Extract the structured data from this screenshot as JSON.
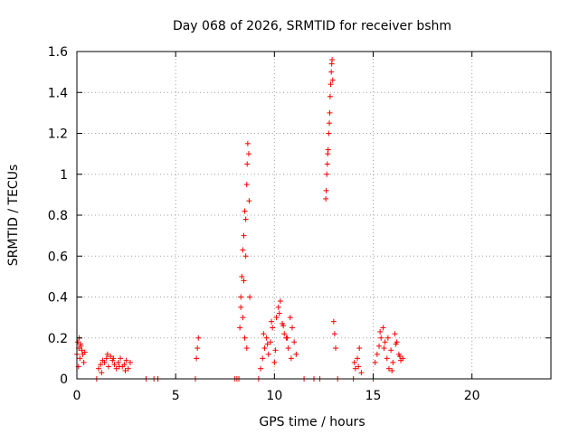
{
  "chart_data": {
    "type": "scatter",
    "title": "Day 068 of 2026, SRMTID for receiver bshm",
    "xlabel": "GPS time / hours",
    "ylabel": "SRMTID / TECUs",
    "xlim": [
      0,
      24
    ],
    "ylim": [
      0,
      1.6
    ],
    "xticks": [
      "0",
      "5",
      "10",
      "15",
      "20"
    ],
    "yticks": [
      "0",
      "0.2",
      "0.4",
      "0.6",
      "0.8",
      "1",
      "1.2",
      "1.4",
      "1.6"
    ],
    "grid": true,
    "marker": "plus",
    "color": "#ff0000",
    "x": [
      0.0,
      0.05,
      0.1,
      0.15,
      0.2,
      0.25,
      0.3,
      0.35,
      0.4,
      0.08,
      0.12,
      0.18,
      1.0,
      1.1,
      1.2,
      1.3,
      1.4,
      1.5,
      1.6,
      1.7,
      1.8,
      1.9,
      2.0,
      2.1,
      2.2,
      2.3,
      2.4,
      2.5,
      2.6,
      2.7,
      1.25,
      1.55,
      1.85,
      2.15,
      2.45,
      3.5,
      3.9,
      4.1,
      6.0,
      6.05,
      6.1,
      6.15,
      8.0,
      8.1,
      8.2,
      8.25,
      8.3,
      8.35,
      8.4,
      8.45,
      8.5,
      8.55,
      8.6,
      8.62,
      8.65,
      8.7,
      8.72,
      8.75,
      8.3,
      8.4,
      8.5,
      8.6,
      8.45,
      8.55,
      9.2,
      9.3,
      9.4,
      9.5,
      9.6,
      9.7,
      9.8,
      9.9,
      10.0,
      10.1,
      10.2,
      10.3,
      10.4,
      10.5,
      10.6,
      10.7,
      10.8,
      10.9,
      11.0,
      11.1,
      9.45,
      9.65,
      9.85,
      10.05,
      10.25,
      10.45,
      10.65,
      10.85,
      11.5,
      12.0,
      12.3,
      12.6,
      12.62,
      12.65,
      12.68,
      12.7,
      12.72,
      12.75,
      12.78,
      12.8,
      12.82,
      12.85,
      12.88,
      12.9,
      12.92,
      12.95,
      13.0,
      13.05,
      13.1,
      13.2,
      14.0,
      14.1,
      14.2,
      14.3,
      14.4,
      14.05,
      14.25,
      15.0,
      15.1,
      15.2,
      15.3,
      15.4,
      15.5,
      15.6,
      15.7,
      15.8,
      15.9,
      16.0,
      16.1,
      16.2,
      16.3,
      16.4,
      16.5,
      15.35,
      15.55,
      15.75,
      15.95,
      16.15,
      16.35
    ],
    "y": [
      0.12,
      0.18,
      0.15,
      0.1,
      0.16,
      0.14,
      0.12,
      0.08,
      0.13,
      0.06,
      0.2,
      0.17,
      0.0,
      0.05,
      0.07,
      0.09,
      0.08,
      0.1,
      0.06,
      0.11,
      0.09,
      0.07,
      0.05,
      0.08,
      0.1,
      0.06,
      0.07,
      0.09,
      0.05,
      0.08,
      0.03,
      0.12,
      0.1,
      0.06,
      0.04,
      0.0,
      0.0,
      0.0,
      0.0,
      0.1,
      0.15,
      0.2,
      0.0,
      0.0,
      0.0,
      0.25,
      0.4,
      0.5,
      0.63,
      0.7,
      0.82,
      0.78,
      0.95,
      1.05,
      1.15,
      1.1,
      0.87,
      0.4,
      0.35,
      0.3,
      0.2,
      0.15,
      0.48,
      0.6,
      0.0,
      0.05,
      0.1,
      0.15,
      0.2,
      0.12,
      0.18,
      0.25,
      0.08,
      0.3,
      0.35,
      0.38,
      0.27,
      0.22,
      0.2,
      0.15,
      0.3,
      0.25,
      0.18,
      0.12,
      0.22,
      0.17,
      0.28,
      0.14,
      0.32,
      0.26,
      0.2,
      0.1,
      0.0,
      0.0,
      0.0,
      0.88,
      0.92,
      1.0,
      1.05,
      1.1,
      1.12,
      1.2,
      1.25,
      1.3,
      1.38,
      1.44,
      1.5,
      1.54,
      1.56,
      1.46,
      0.28,
      0.22,
      0.15,
      0.0,
      0.0,
      0.05,
      0.1,
      0.15,
      0.03,
      0.08,
      0.06,
      0.0,
      0.08,
      0.12,
      0.16,
      0.2,
      0.25,
      0.18,
      0.1,
      0.05,
      0.14,
      0.08,
      0.22,
      0.18,
      0.12,
      0.09,
      0.1,
      0.23,
      0.15,
      0.2,
      0.04,
      0.17,
      0.11
    ]
  }
}
